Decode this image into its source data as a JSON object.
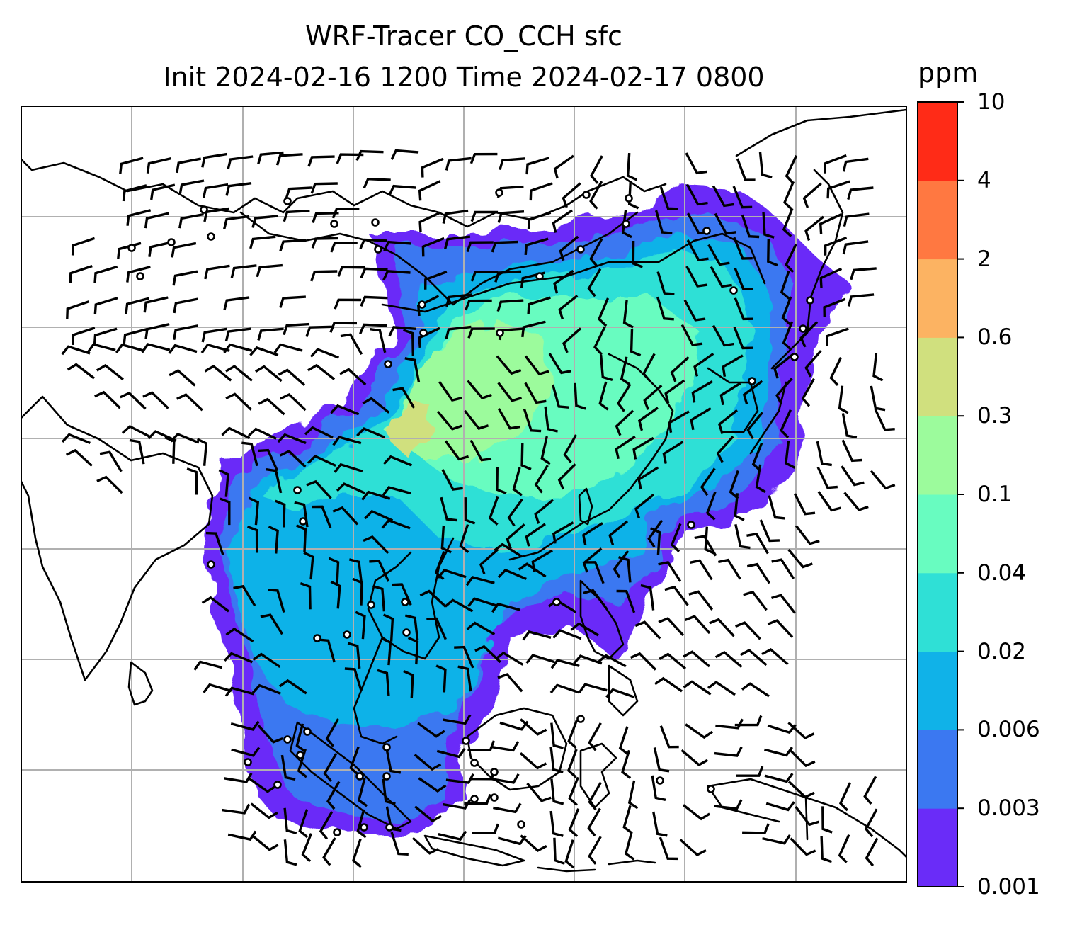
{
  "title_line1": "WRF-Tracer CO_CCH sfc",
  "title_line2": "Init 2024-02-16 1200 Time 2024-02-17 0800",
  "colorbar": {
    "unit": "ppm",
    "levels": [
      "0.001",
      "0.003",
      "0.006",
      "0.02",
      "0.04",
      "0.1",
      "0.3",
      "0.6",
      "2",
      "4",
      "10"
    ],
    "colors": [
      "#6a2cf8",
      "#3b78f1",
      "#10b2e8",
      "#2fe0d6",
      "#68fcc0",
      "#9cfb9c",
      "#d0e07e",
      "#fcb362",
      "#ff7841",
      "#ff2b17"
    ]
  },
  "map": {
    "gridlines": true,
    "features": [
      "coastlines",
      "country-borders",
      "wind-barbs",
      "calm-station-circles"
    ],
    "land_color": "#ffffff",
    "coast_color": "#000000",
    "grid_color": "#b0b0b0"
  }
}
